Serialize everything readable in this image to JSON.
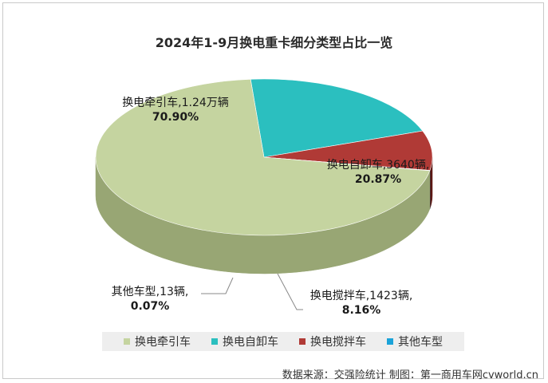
{
  "chart_data": {
    "type": "pie",
    "title": "2024年1-9月换电重卡细分类型占比一览",
    "slices": [
      {
        "name": "换电牵引车",
        "value": 12400,
        "value_label": "1.24万辆",
        "percent": 70.9,
        "percent_label": "70.90%",
        "color": "#c5d4a0",
        "side_color": "#98a674"
      },
      {
        "name": "换电自卸车",
        "value": 3640,
        "value_label": "3640辆",
        "percent": 20.87,
        "percent_label": "20.87%",
        "color": "#2bbfbf",
        "side_color": "#14595a"
      },
      {
        "name": "换电搅拌车",
        "value": 1423,
        "value_label": "1423辆",
        "percent": 8.16,
        "percent_label": "8.16%",
        "color": "#b03a36",
        "side_color": "#5c1814"
      },
      {
        "name": "其他车型",
        "value": 13,
        "value_label": "13辆",
        "percent": 0.07,
        "percent_label": "0.07%",
        "color": "#1aa3d9",
        "side_color": "#0b5576"
      }
    ],
    "legend_position": "bottom"
  },
  "labels": [
    {
      "line1": "换电牵引车,1.24万辆",
      "line2": "70.90%"
    },
    {
      "line1": "换电自卸车,3640辆,",
      "line2": "20.87%"
    },
    {
      "line1": "换电搅拌车,1423辆,",
      "line2": "8.16%"
    },
    {
      "line1": "其他车型,13辆,",
      "line2": "0.07%"
    }
  ],
  "source": "数据来源：交强险统计  制图：第一商用车网cvworld.cn"
}
